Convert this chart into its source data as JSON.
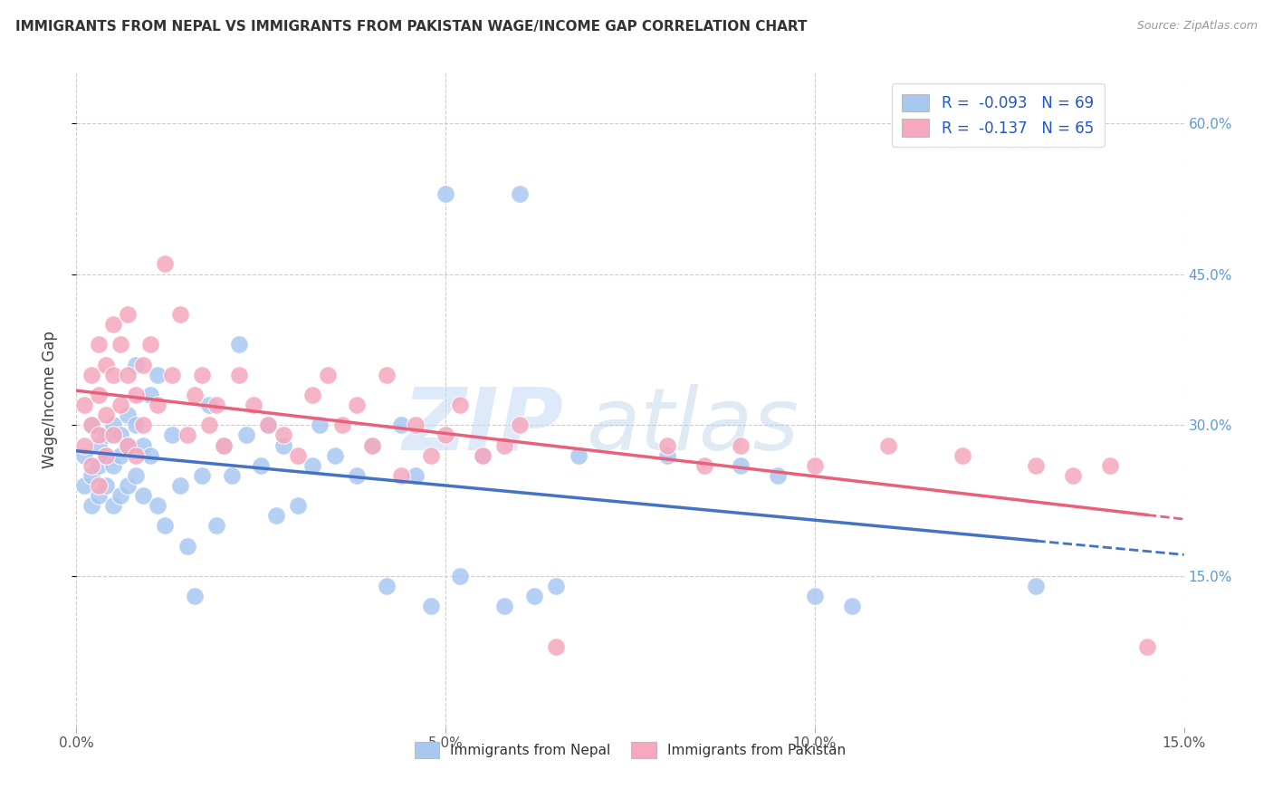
{
  "title": "IMMIGRANTS FROM NEPAL VS IMMIGRANTS FROM PAKISTAN WAGE/INCOME GAP CORRELATION CHART",
  "source": "Source: ZipAtlas.com",
  "ylabel": "Wage/Income Gap",
  "nepal_R": -0.093,
  "nepal_N": 69,
  "pakistan_R": -0.137,
  "pakistan_N": 65,
  "nepal_color": "#a8c8f0",
  "pakistan_color": "#f5a8be",
  "nepal_line_color": "#4472c4",
  "pakistan_line_color": "#e8607a",
  "nepal_line_style": "solid",
  "pakistan_line_style": "solid",
  "legend_R_color": "#2255cc",
  "background_color": "#ffffff",
  "grid_color": "#cccccc",
  "xlim": [
    0.0,
    0.15
  ],
  "ylim": [
    0.0,
    0.65
  ],
  "y_ticks": [
    0.15,
    0.3,
    0.45,
    0.6
  ],
  "y_tick_labels": [
    "15.0%",
    "30.0%",
    "45.0%",
    "60.0%"
  ],
  "x_ticks": [
    0.0,
    0.05,
    0.1,
    0.15
  ],
  "x_tick_labels": [
    "0.0%",
    "5.0%",
    "10.0%",
    "15.0%"
  ],
  "nepal_x": [
    0.001,
    0.001,
    0.002,
    0.002,
    0.002,
    0.003,
    0.003,
    0.003,
    0.004,
    0.004,
    0.004,
    0.005,
    0.005,
    0.005,
    0.006,
    0.006,
    0.006,
    0.007,
    0.007,
    0.007,
    0.008,
    0.008,
    0.008,
    0.009,
    0.009,
    0.01,
    0.01,
    0.011,
    0.011,
    0.012,
    0.013,
    0.014,
    0.015,
    0.016,
    0.017,
    0.018,
    0.019,
    0.02,
    0.021,
    0.022,
    0.023,
    0.025,
    0.026,
    0.027,
    0.028,
    0.03,
    0.032,
    0.033,
    0.035,
    0.038,
    0.04,
    0.042,
    0.044,
    0.046,
    0.048,
    0.05,
    0.052,
    0.055,
    0.058,
    0.06,
    0.062,
    0.065,
    0.068,
    0.08,
    0.09,
    0.095,
    0.1,
    0.105,
    0.13
  ],
  "nepal_y": [
    0.27,
    0.24,
    0.3,
    0.25,
    0.22,
    0.28,
    0.26,
    0.23,
    0.29,
    0.27,
    0.24,
    0.3,
    0.26,
    0.22,
    0.29,
    0.27,
    0.23,
    0.31,
    0.28,
    0.24,
    0.36,
    0.3,
    0.25,
    0.28,
    0.23,
    0.33,
    0.27,
    0.35,
    0.22,
    0.2,
    0.29,
    0.24,
    0.18,
    0.13,
    0.25,
    0.32,
    0.2,
    0.28,
    0.25,
    0.38,
    0.29,
    0.26,
    0.3,
    0.21,
    0.28,
    0.22,
    0.26,
    0.3,
    0.27,
    0.25,
    0.28,
    0.14,
    0.3,
    0.25,
    0.12,
    0.53,
    0.15,
    0.27,
    0.12,
    0.53,
    0.13,
    0.14,
    0.27,
    0.27,
    0.26,
    0.25,
    0.13,
    0.12,
    0.14
  ],
  "pakistan_x": [
    0.001,
    0.001,
    0.002,
    0.002,
    0.002,
    0.003,
    0.003,
    0.003,
    0.003,
    0.004,
    0.004,
    0.004,
    0.005,
    0.005,
    0.005,
    0.006,
    0.006,
    0.007,
    0.007,
    0.007,
    0.008,
    0.008,
    0.009,
    0.009,
    0.01,
    0.011,
    0.012,
    0.013,
    0.014,
    0.015,
    0.016,
    0.017,
    0.018,
    0.019,
    0.02,
    0.022,
    0.024,
    0.026,
    0.028,
    0.03,
    0.032,
    0.034,
    0.036,
    0.038,
    0.04,
    0.042,
    0.044,
    0.046,
    0.048,
    0.05,
    0.052,
    0.055,
    0.058,
    0.06,
    0.065,
    0.08,
    0.085,
    0.09,
    0.1,
    0.11,
    0.12,
    0.13,
    0.135,
    0.14,
    0.145
  ],
  "pakistan_y": [
    0.32,
    0.28,
    0.35,
    0.3,
    0.26,
    0.38,
    0.33,
    0.29,
    0.24,
    0.36,
    0.31,
    0.27,
    0.4,
    0.35,
    0.29,
    0.38,
    0.32,
    0.41,
    0.35,
    0.28,
    0.33,
    0.27,
    0.36,
    0.3,
    0.38,
    0.32,
    0.46,
    0.35,
    0.41,
    0.29,
    0.33,
    0.35,
    0.3,
    0.32,
    0.28,
    0.35,
    0.32,
    0.3,
    0.29,
    0.27,
    0.33,
    0.35,
    0.3,
    0.32,
    0.28,
    0.35,
    0.25,
    0.3,
    0.27,
    0.29,
    0.32,
    0.27,
    0.28,
    0.3,
    0.08,
    0.28,
    0.26,
    0.28,
    0.26,
    0.28,
    0.27,
    0.26,
    0.25,
    0.26,
    0.08
  ]
}
